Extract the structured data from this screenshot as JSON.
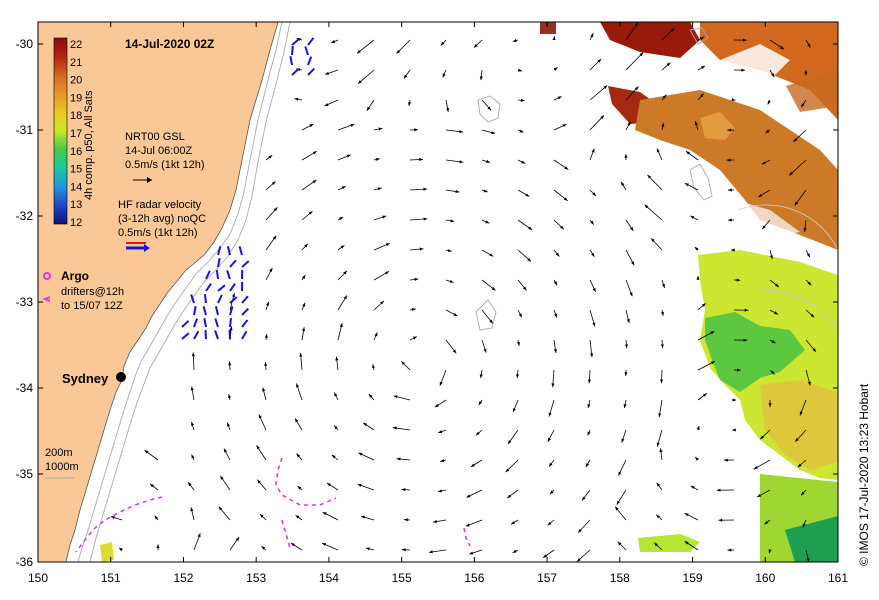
{
  "map": {
    "title": "14-Jul-2020 02Z",
    "credit": "© IMOS 17-Jul-2020 13:23 Hobart",
    "city": "Sydney",
    "colorbar": {
      "label": "4h comp. p50, All Sats",
      "ticks": [
        "22",
        "21",
        "20",
        "19",
        "18",
        "17",
        "16",
        "15",
        "14",
        "13",
        "12"
      ],
      "colors": [
        "#8b0a0a",
        "#b22410",
        "#d2691e",
        "#e8962a",
        "#e8c82a",
        "#c8e62a",
        "#46c846",
        "#1ec8a0",
        "#1e96dc",
        "#1e46c8",
        "#0a1478"
      ]
    },
    "nrt_legend": {
      "line1": "NRT00 GSL",
      "line2": "14-Jul 06:00Z",
      "line3": "0.5m/s (1kt 12h)"
    },
    "hf_legend": {
      "line1": "HF radar velocity",
      "line2": "(3-12h avg) noQC",
      "line3": "0.5m/s (1kt 12h)"
    },
    "argo_legend": {
      "label": "Argo",
      "line1": "drifters@12h",
      "line2": "to 15/07 12Z"
    },
    "depth_legend": {
      "d1": "200m",
      "d2": "1000m"
    },
    "x_ticks": [
      "150",
      "151",
      "152",
      "153",
      "154",
      "155",
      "156",
      "157",
      "158",
      "159",
      "160",
      "161"
    ],
    "y_ticks": [
      "-30",
      "-31",
      "-32",
      "-33",
      "-34",
      "-35",
      "-36"
    ],
    "colors": {
      "land": "#fac896",
      "hf_vector": "#1414dc",
      "drifter": "#e632e6",
      "argo": "#e632e6",
      "current_vector": "#000000"
    }
  }
}
